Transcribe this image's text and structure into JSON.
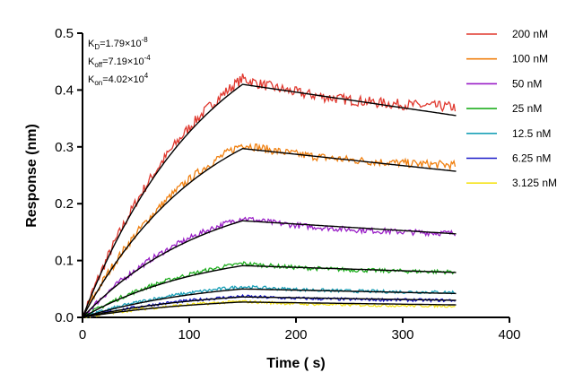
{
  "chart_data": {
    "type": "line",
    "title": "",
    "xlabel": "Time ( s)",
    "ylabel": "Response (nm)",
    "xlim": [
      0,
      400
    ],
    "ylim": [
      0,
      0.5
    ],
    "x_ticks": [
      "0",
      "100",
      "200",
      "300",
      "400"
    ],
    "y_ticks": [
      "0.0",
      "0.1",
      "0.2",
      "0.3",
      "0.4",
      "0.5"
    ],
    "grid": false,
    "legend_position": "top-right",
    "association_end": 150,
    "time_end": 350,
    "kinetics": {
      "kd_label": "K",
      "kd_sub": "D",
      "kd_value": "=1.79×10",
      "kd_exp": "-8",
      "koff_label": "K",
      "koff_sub": "off",
      "koff_value": "=7.19×10",
      "koff_exp": "-4",
      "kon_label": "K",
      "kon_sub": "on",
      "kon_value": "=4.02×10",
      "kon_exp": "4"
    },
    "fit_color": "#000000",
    "series": [
      {
        "name": "200 nM",
        "color": "#e0382e",
        "peak": 0.41,
        "plateau": 0.42,
        "end": 0.37,
        "fit_end": 0.355
      },
      {
        "name": "100 nM",
        "color": "#f08010",
        "peak": 0.297,
        "plateau": 0.305,
        "end": 0.268,
        "fit_end": 0.257
      },
      {
        "name": "50 nM",
        "color": "#9a1fc7",
        "peak": 0.17,
        "plateau": 0.175,
        "end": 0.148,
        "fit_end": 0.147
      },
      {
        "name": "25 nM",
        "color": "#1fae1f",
        "peak": 0.091,
        "plateau": 0.095,
        "end": 0.08,
        "fit_end": 0.079
      },
      {
        "name": "12.5 nM",
        "color": "#1aa0b8",
        "peak": 0.05,
        "plateau": 0.054,
        "end": 0.044,
        "fit_end": 0.042
      },
      {
        "name": "6.25 nM",
        "color": "#1a1ac8",
        "peak": 0.036,
        "plateau": 0.037,
        "end": 0.03,
        "fit_end": 0.03
      },
      {
        "name": "3.125 nM",
        "color": "#f5e31a",
        "peak": 0.027,
        "plateau": 0.028,
        "end": 0.02,
        "fit_end": 0.022
      }
    ]
  }
}
